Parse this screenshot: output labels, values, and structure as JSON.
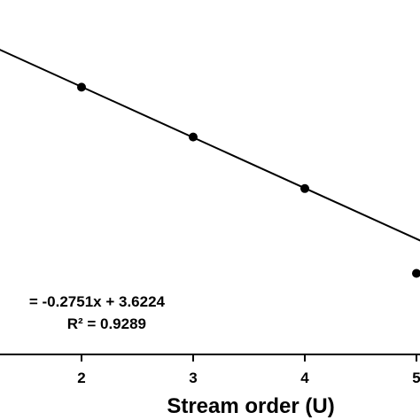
{
  "chart_data": {
    "type": "scatter",
    "xlabel": "Stream order (U)",
    "ylabel": "",
    "x": [
      2,
      3,
      4,
      5
    ],
    "y": [
      3.07,
      2.8,
      2.52,
      2.06
    ],
    "xlim": [
      1,
      5
    ],
    "ylim": [
      1.62,
      3.62
    ],
    "x_ticks": [
      "2",
      "3",
      "4",
      "5"
    ],
    "trendline": {
      "slope": -0.2751,
      "intercept": 3.6224
    },
    "annotations": {
      "equation": "= -0.2751x + 3.6224",
      "r_squared": "R² = 0.9289"
    },
    "grid": false,
    "legend": "none"
  }
}
